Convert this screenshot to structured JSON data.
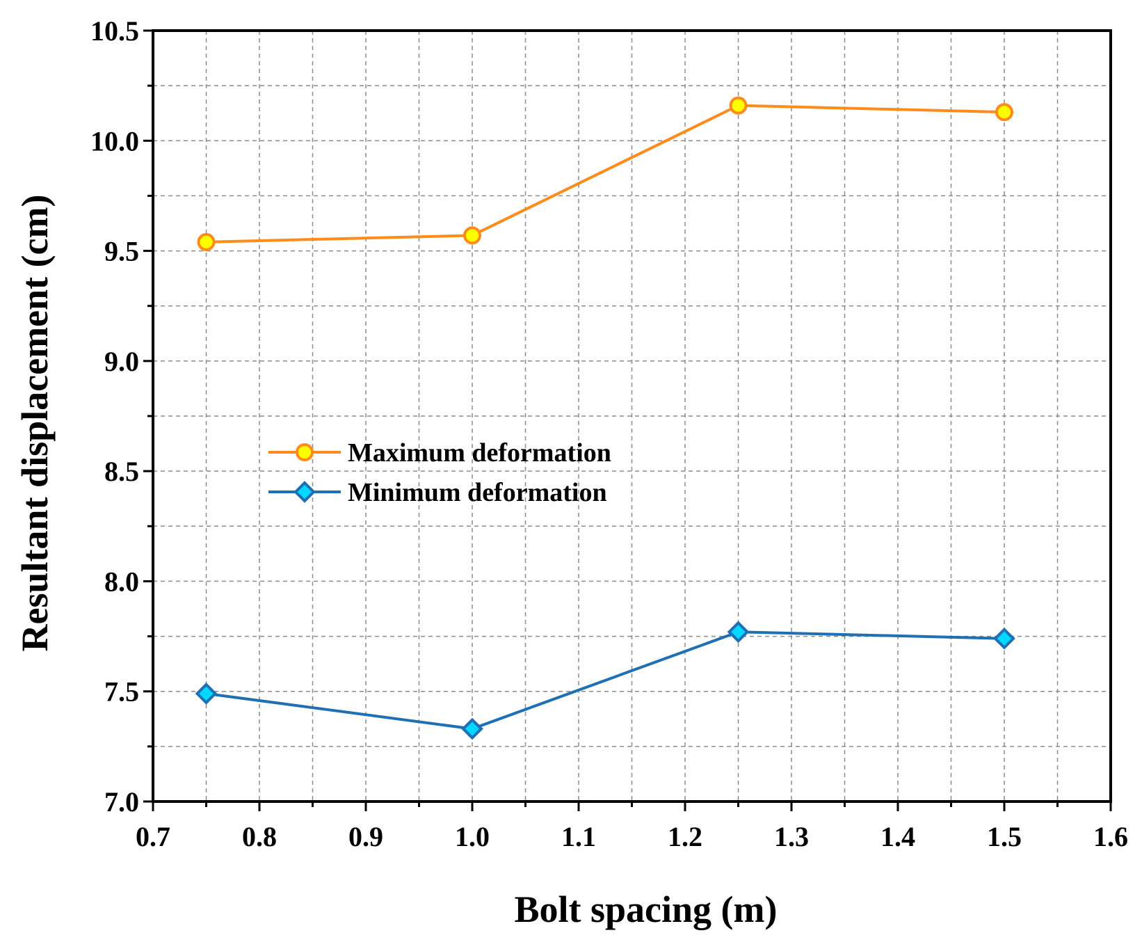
{
  "chart_data": {
    "type": "line",
    "xlabel": "Bolt spacing (m)",
    "ylabel": "Resultant displacement (cm)",
    "xlim": [
      0.7,
      1.6
    ],
    "ylim": [
      7.0,
      10.5
    ],
    "xticks": [
      "0.7",
      "0.8",
      "0.9",
      "1.0",
      "1.1",
      "1.2",
      "1.3",
      "1.4",
      "1.5",
      "1.6"
    ],
    "yticks": [
      "7.0",
      "7.5",
      "8.0",
      "8.5",
      "9.0",
      "9.5",
      "10.0",
      "10.5"
    ],
    "grid": true,
    "legend_position": "center-left",
    "series": [
      {
        "name": "Maximum deformation",
        "marker": "circle",
        "line_color": "#FF8C1A",
        "marker_fill": "#FFFF00",
        "x": [
          0.75,
          1.0,
          1.25,
          1.5
        ],
        "y": [
          9.54,
          9.57,
          10.16,
          10.13
        ]
      },
      {
        "name": "Minimum deformation",
        "marker": "diamond",
        "line_color": "#1F6FB5",
        "marker_fill": "#00D8FF",
        "x": [
          0.75,
          1.0,
          1.25,
          1.5
        ],
        "y": [
          7.49,
          7.33,
          7.77,
          7.74
        ]
      }
    ]
  }
}
